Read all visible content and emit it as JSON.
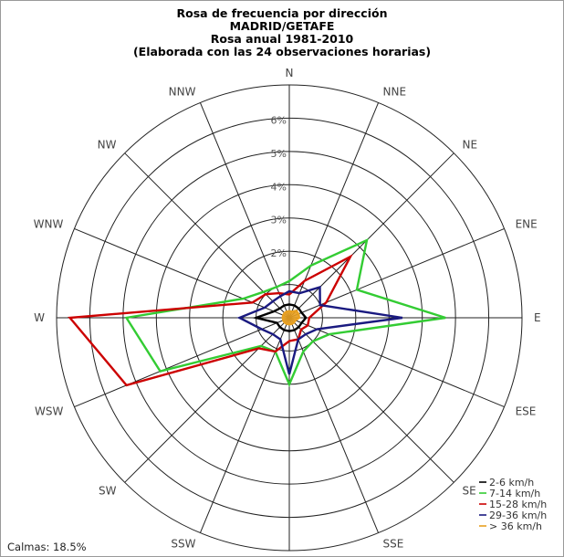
{
  "title_lines": [
    "Rosa de frecuencia por dirección",
    "MADRID/GETAFE",
    "Rosa anual 1981-2010",
    "(Elaborada con las 24 observaciones horarias)"
  ],
  "calms_text": "Calmas: 18.5%",
  "chart_data": {
    "type": "radar",
    "directions": [
      "N",
      "NNE",
      "NE",
      "ENE",
      "E",
      "ESE",
      "SE",
      "SSE",
      "S",
      "SSW",
      "SW",
      "WSW",
      "W",
      "WNW",
      "NW",
      "NNW"
    ],
    "radial_ticks": [
      2,
      3,
      4,
      5,
      6
    ],
    "radial_tick_labels": [
      "2%",
      "3%",
      "4%",
      "5%",
      "6%"
    ],
    "radial_max": 7,
    "series": [
      {
        "name": "2-6 km/h",
        "color": "#000000",
        "values": [
          0.4,
          0.4,
          0.4,
          0.4,
          0.5,
          0.4,
          0.4,
          0.4,
          0.4,
          0.4,
          0.4,
          0.4,
          1.0,
          0.5,
          0.4,
          0.4
        ]
      },
      {
        "name": "7-14 km/h",
        "color": "#33cc33",
        "values": [
          1.1,
          1.7,
          3.3,
          2.2,
          4.7,
          1.3,
          1.0,
          1.1,
          2.0,
          1.1,
          1.2,
          4.2,
          4.9,
          1.5,
          1.1,
          1.0
        ]
      },
      {
        "name": "15-28 km/h",
        "color": "#cc0000",
        "values": [
          0.7,
          1.2,
          2.6,
          1.2,
          0.6,
          0.6,
          0.5,
          0.7,
          0.7,
          1.1,
          1.3,
          5.3,
          6.6,
          1.2,
          1.0,
          0.8
        ]
      },
      {
        "name": "29-36 km/h",
        "color": "#1a1a80",
        "values": [
          0.8,
          0.8,
          1.3,
          1.0,
          3.4,
          0.9,
          0.7,
          0.7,
          1.7,
          0.7,
          0.7,
          0.9,
          1.5,
          0.8,
          0.7,
          0.7
        ]
      },
      {
        "name": "> 36 km/h",
        "color": "#e8a020",
        "values": [
          0.2,
          0.2,
          0.3,
          0.3,
          0.3,
          0.2,
          0.2,
          0.2,
          0.2,
          0.2,
          0.2,
          0.2,
          0.2,
          0.2,
          0.2,
          0.2
        ]
      }
    ]
  }
}
